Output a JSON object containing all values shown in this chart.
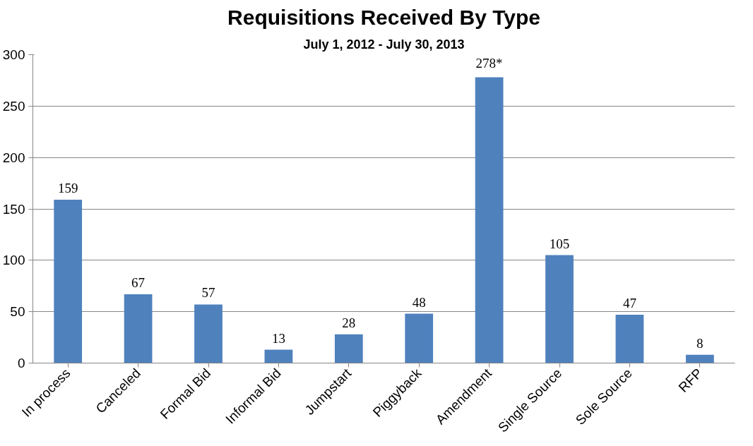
{
  "chart_data": {
    "type": "bar",
    "title": "Requisitions Received By Type",
    "subtitle": "July 1, 2012 - July 30, 2013",
    "categories": [
      "In process",
      "Canceled",
      "Formal Bid",
      "Informal Bid",
      "Jumpstart",
      "Piggyback",
      "Amendment",
      "Single Source",
      "Sole Source",
      "RFP"
    ],
    "values": [
      159,
      67,
      57,
      13,
      28,
      48,
      278,
      105,
      47,
      8
    ],
    "value_labels": [
      "159",
      "67",
      "57",
      "13",
      "28",
      "48",
      "278*",
      "105",
      "47",
      "8"
    ],
    "color": "#4f81bd",
    "ylim": [
      0,
      300
    ],
    "yticks": [
      0,
      50,
      100,
      150,
      200,
      250,
      300
    ],
    "grid": "y"
  }
}
